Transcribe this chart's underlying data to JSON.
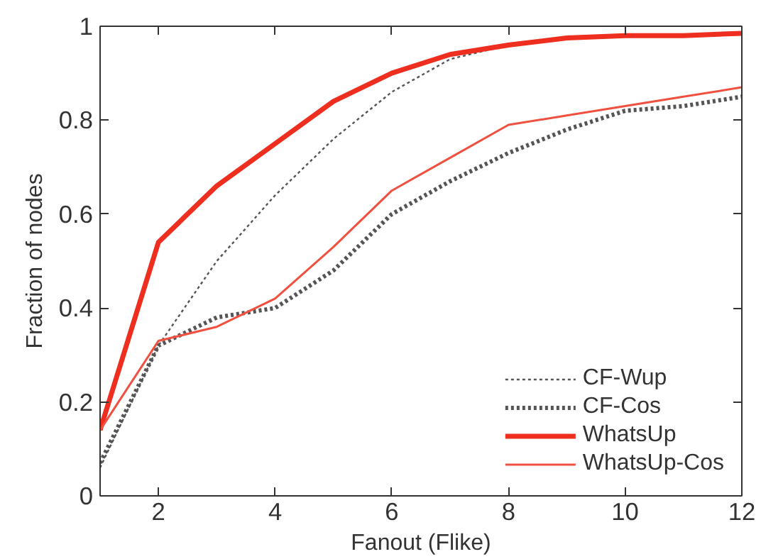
{
  "chart_data": {
    "type": "line",
    "xlabel": "Fanout (Flike)",
    "ylabel": "Fraction of nodes",
    "x": [
      1,
      2,
      3,
      4,
      5,
      6,
      7,
      8,
      9,
      10,
      11,
      12
    ],
    "series": [
      {
        "name": "CF-Wup",
        "color": "#555555",
        "line_style": "dotted",
        "values": [
          0.06,
          0.32,
          0.5,
          0.64,
          0.76,
          0.86,
          0.93,
          0.96,
          0.975,
          0.98,
          0.98,
          0.985
        ]
      },
      {
        "name": "CF-Cos",
        "color": "#555555",
        "line_style": "dotted",
        "values": [
          0.07,
          0.32,
          0.38,
          0.4,
          0.48,
          0.6,
          0.67,
          0.73,
          0.78,
          0.82,
          0.83,
          0.85
        ]
      },
      {
        "name": "WhatsUp",
        "color": "#ee2e1e",
        "line_style": "solid",
        "values": [
          0.14,
          0.54,
          0.66,
          0.75,
          0.84,
          0.9,
          0.94,
          0.96,
          0.975,
          0.98,
          0.98,
          0.985
        ]
      },
      {
        "name": "WhatsUp-Cos",
        "color": "#f05040",
        "line_style": "solid",
        "values": [
          0.14,
          0.33,
          0.36,
          0.42,
          0.53,
          0.65,
          0.72,
          0.79,
          0.81,
          0.83,
          0.85,
          0.87
        ]
      }
    ],
    "xlim": [
      1,
      12
    ],
    "ylim": [
      0,
      1
    ],
    "xticks": [
      2,
      4,
      6,
      8,
      10,
      12
    ],
    "yticks": [
      0,
      0.2,
      0.4,
      0.6,
      0.8,
      1
    ],
    "grid": false,
    "legend": "bottom right",
    "marker": "none"
  }
}
